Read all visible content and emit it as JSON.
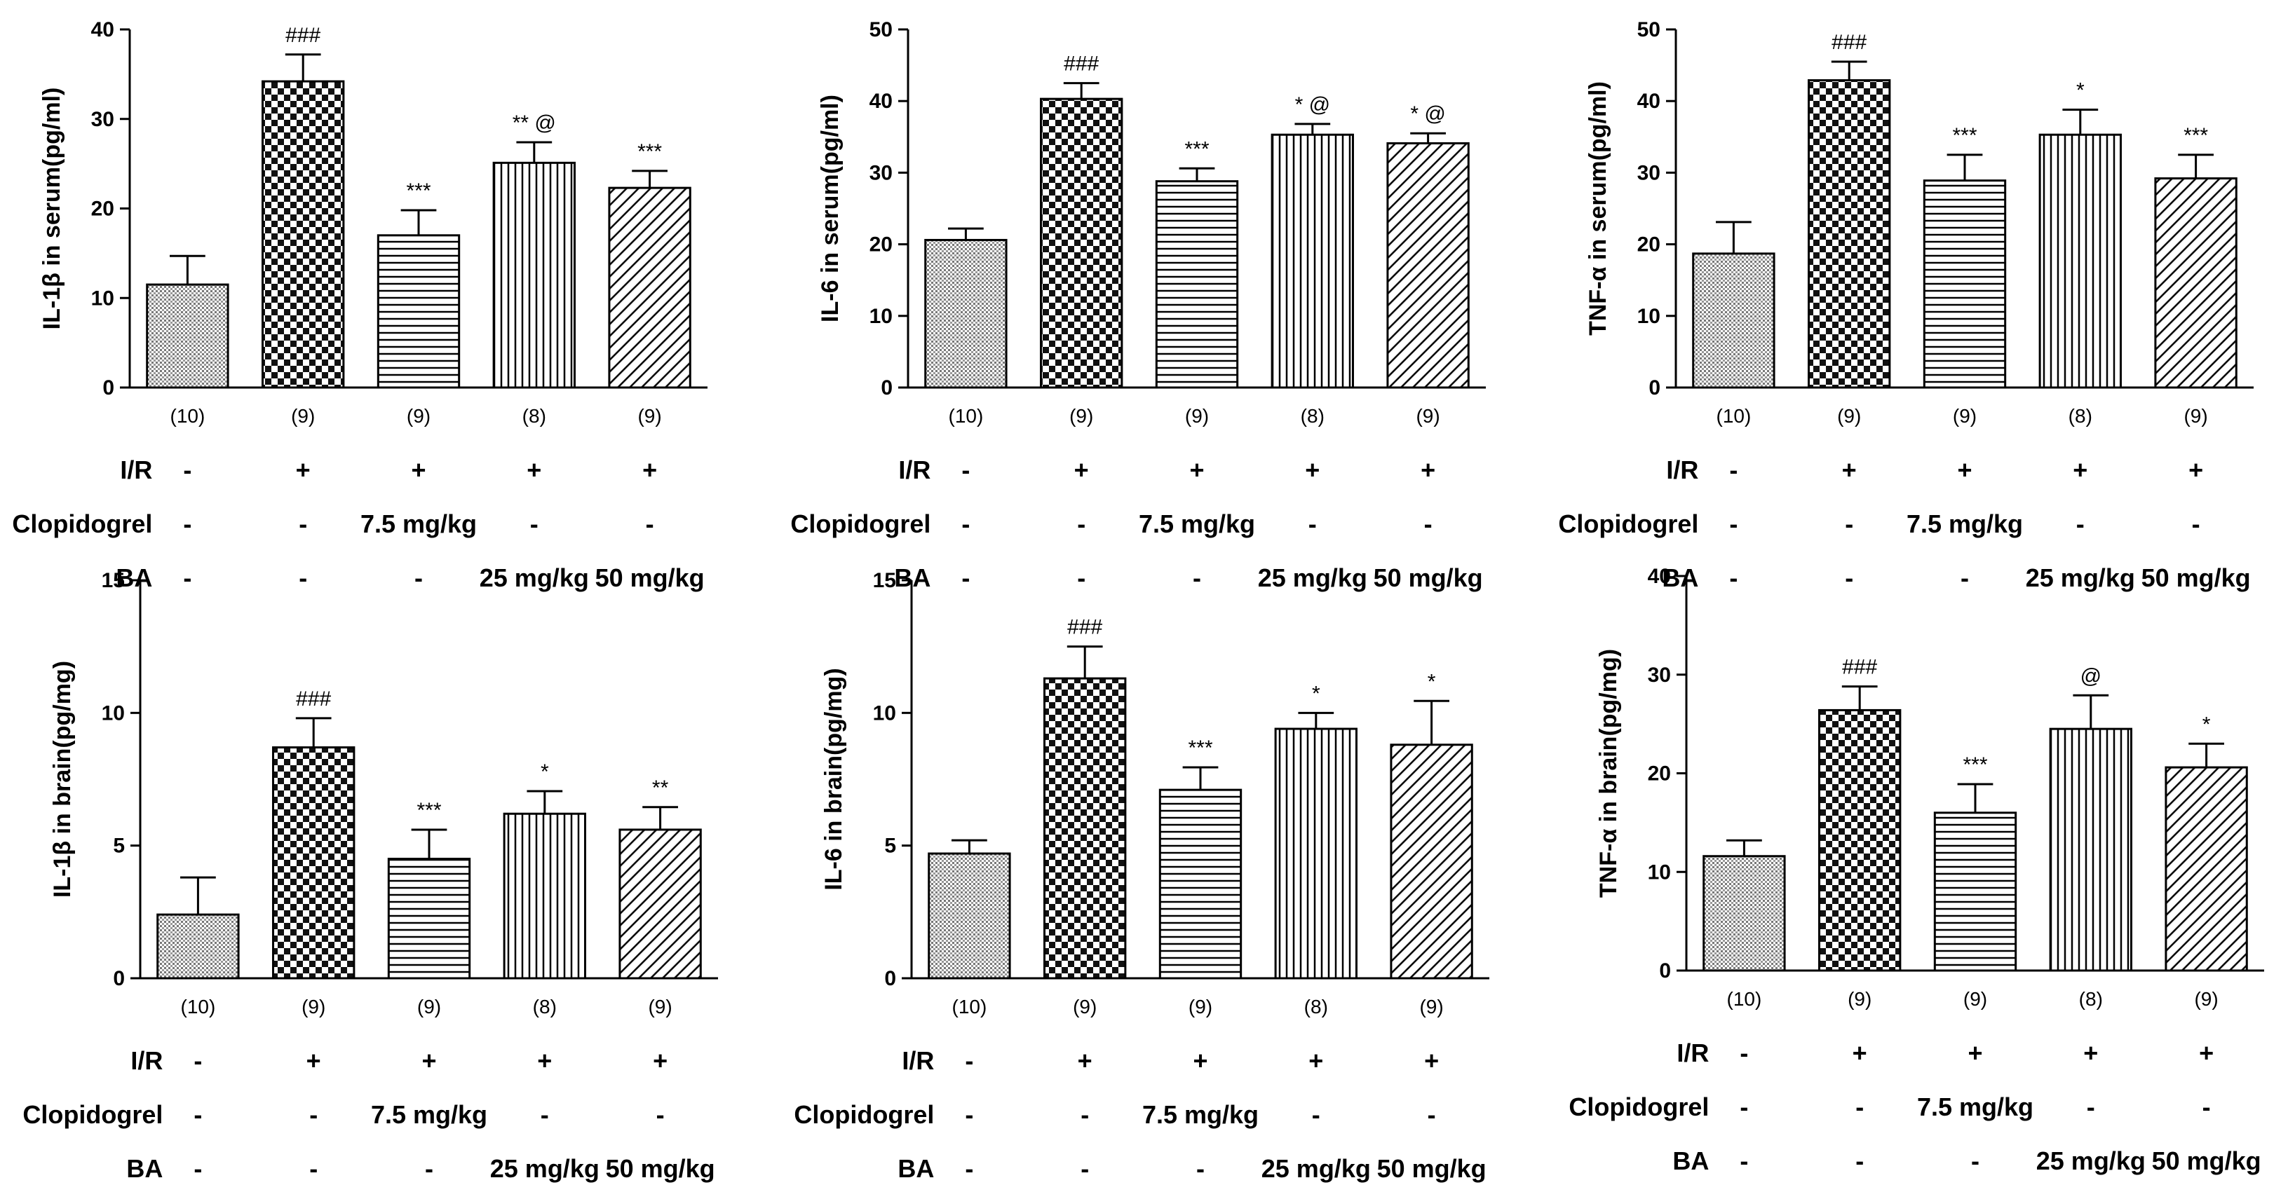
{
  "colors": {
    "bar_stroke": "#000000",
    "fill_background": "#ffffff",
    "axis": "#000000"
  },
  "treatments": {
    "rows": [
      {
        "name": "I/R",
        "values": [
          "-",
          "+",
          "+",
          "+",
          "+"
        ]
      },
      {
        "name": "Clopidogrel",
        "values": [
          "-",
          "-",
          "7.5 mg/kg",
          "-",
          "-"
        ]
      },
      {
        "name": "BA",
        "values": [
          "-",
          "-",
          "-",
          "25 mg/kg",
          "50 mg/kg"
        ]
      }
    ]
  },
  "chart_data": [
    {
      "type": "bar",
      "ylabel": "IL-1β  in serum(pg/ml)",
      "ylim": [
        0,
        40
      ],
      "yticks": [
        "0",
        "10",
        "20",
        "30",
        "40"
      ],
      "categories": [
        "(10)",
        "(9)",
        "(9)",
        "(8)",
        "(9)"
      ],
      "values": [
        11.5,
        34.2,
        17.0,
        25.1,
        22.3
      ],
      "errors": [
        3.2,
        3.0,
        2.8,
        2.3,
        1.9
      ],
      "annotations": [
        "",
        "###",
        "***",
        "** @",
        "***"
      ],
      "patterns": [
        "fine",
        "checker",
        "hlines",
        "vlines",
        "diag"
      ],
      "grid": false
    },
    {
      "type": "bar",
      "ylabel": "IL-6 in serum(pg/ml)",
      "ylim": [
        0,
        50
      ],
      "yticks": [
        "0",
        "10",
        "20",
        "30",
        "40",
        "50"
      ],
      "categories": [
        "(10)",
        "(9)",
        "(9)",
        "(8)",
        "(9)"
      ],
      "values": [
        20.6,
        40.3,
        28.8,
        35.3,
        34.1
      ],
      "errors": [
        1.6,
        2.2,
        1.8,
        1.5,
        1.4
      ],
      "annotations": [
        "",
        "###",
        "***",
        "* @",
        "* @"
      ],
      "patterns": [
        "fine",
        "checker",
        "hlines",
        "vlines",
        "diag"
      ],
      "grid": false
    },
    {
      "type": "bar",
      "ylabel": "TNF-α in serum(pg/ml)",
      "ylim": [
        0,
        50
      ],
      "yticks": [
        "0",
        "10",
        "20",
        "30",
        "40",
        "50"
      ],
      "categories": [
        "(10)",
        "(9)",
        "(9)",
        "(8)",
        "(9)"
      ],
      "values": [
        18.7,
        42.9,
        28.9,
        35.3,
        29.2
      ],
      "errors": [
        4.4,
        2.6,
        3.6,
        3.5,
        3.3
      ],
      "annotations": [
        "",
        "###",
        "***",
        "*",
        "***"
      ],
      "patterns": [
        "fine",
        "checker",
        "hlines",
        "vlines",
        "diag"
      ],
      "grid": false
    },
    {
      "type": "bar",
      "ylabel": "IL-1β  in brain(pg/mg)",
      "ylim": [
        0,
        15
      ],
      "yticks": [
        "0",
        "5",
        "10",
        "15"
      ],
      "categories": [
        "(10)",
        "(9)",
        "(9)",
        "(8)",
        "(9)"
      ],
      "values": [
        2.4,
        8.7,
        4.5,
        6.2,
        5.6
      ],
      "errors": [
        1.4,
        1.1,
        1.1,
        0.85,
        0.85
      ],
      "annotations": [
        "",
        "###",
        "***",
        "*",
        "**"
      ],
      "patterns": [
        "fine",
        "checker",
        "hlines",
        "vlines",
        "diag"
      ],
      "grid": false
    },
    {
      "type": "bar",
      "ylabel": "IL-6 in brain(pg/mg)",
      "ylim": [
        0,
        15
      ],
      "yticks": [
        "0",
        "5",
        "10",
        "15"
      ],
      "categories": [
        "(10)",
        "(9)",
        "(9)",
        "(8)",
        "(9)"
      ],
      "values": [
        4.7,
        11.3,
        7.1,
        9.4,
        8.8
      ],
      "errors": [
        0.5,
        1.2,
        0.85,
        0.6,
        1.65
      ],
      "annotations": [
        "",
        "###",
        "***",
        "*",
        "*"
      ],
      "patterns": [
        "fine",
        "checker",
        "hlines",
        "vlines",
        "diag"
      ],
      "grid": false
    },
    {
      "type": "bar",
      "ylabel": "TNF-α in brain(pg/mg)",
      "ylim": [
        0,
        40
      ],
      "yticks": [
        "0",
        "10",
        "20",
        "30",
        "40"
      ],
      "categories": [
        "(10)",
        "(9)",
        "(9)",
        "(8)",
        "(9)"
      ],
      "values": [
        11.6,
        26.4,
        16.0,
        24.5,
        20.6
      ],
      "errors": [
        1.6,
        2.4,
        2.9,
        3.4,
        2.4
      ],
      "annotations": [
        "",
        "###",
        "***",
        "@",
        "*"
      ],
      "patterns": [
        "fine",
        "checker",
        "hlines",
        "vlines",
        "diag"
      ],
      "grid": false
    }
  ]
}
